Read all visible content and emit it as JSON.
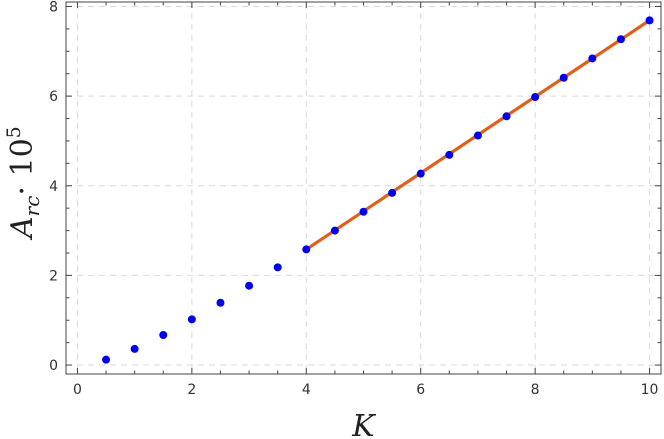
{
  "chart_data": {
    "type": "scatter",
    "title": "",
    "xlabel": "K",
    "ylabel_main": "A",
    "ylabel_sub": "rc",
    "ylabel_factor": "· 10",
    "ylabel_exp": "5",
    "xlim": [
      -0.2,
      10.2
    ],
    "ylim": [
      -0.2,
      8.1
    ],
    "x_ticks": [
      0,
      2,
      4,
      6,
      8,
      10
    ],
    "y_ticks": [
      0,
      2,
      4,
      6,
      8
    ],
    "grid": true,
    "series": [
      {
        "type": "scatter",
        "color": "#0000ee",
        "points": [
          [
            0.5,
            0.12
          ],
          [
            1.0,
            0.36
          ],
          [
            1.5,
            0.67
          ],
          [
            2.0,
            1.02
          ],
          [
            2.5,
            1.39
          ],
          [
            3.0,
            1.77
          ],
          [
            3.5,
            2.18
          ],
          [
            4.0,
            2.58
          ],
          [
            4.5,
            3.0
          ],
          [
            5.0,
            3.42
          ],
          [
            5.5,
            3.84
          ],
          [
            6.0,
            4.27
          ],
          [
            6.5,
            4.69
          ],
          [
            7.0,
            5.12
          ],
          [
            7.5,
            5.55
          ],
          [
            8.0,
            5.98
          ],
          [
            8.5,
            6.41
          ],
          [
            9.0,
            6.84
          ],
          [
            9.5,
            7.27
          ],
          [
            10.0,
            7.69
          ]
        ]
      },
      {
        "type": "line",
        "color": "#e0601a",
        "points": [
          [
            4.0,
            2.58
          ],
          [
            10.0,
            7.69
          ]
        ]
      }
    ]
  }
}
